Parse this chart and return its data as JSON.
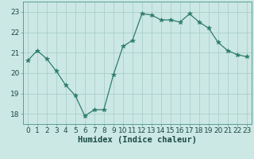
{
  "x": [
    0,
    1,
    2,
    3,
    4,
    5,
    6,
    7,
    8,
    9,
    10,
    11,
    12,
    13,
    14,
    15,
    16,
    17,
    18,
    19,
    20,
    21,
    22,
    23
  ],
  "y": [
    20.6,
    21.1,
    20.7,
    20.1,
    19.4,
    18.9,
    17.9,
    18.2,
    18.2,
    19.9,
    21.3,
    21.6,
    22.9,
    22.85,
    22.6,
    22.6,
    22.5,
    22.9,
    22.5,
    22.2,
    21.5,
    21.1,
    20.9,
    20.8
  ],
  "line_color": "#2e7d6e",
  "marker": "*",
  "marker_size": 4,
  "bg_color": "#cce8e4",
  "grid_color": "#aacfca",
  "xlabel": "Humidex (Indice chaleur)",
  "ylim": [
    17.5,
    23.5
  ],
  "xlim": [
    -0.5,
    23.5
  ],
  "yticks": [
    18,
    19,
    20,
    21,
    22,
    23
  ],
  "xticks": [
    0,
    1,
    2,
    3,
    4,
    5,
    6,
    7,
    8,
    9,
    10,
    11,
    12,
    13,
    14,
    15,
    16,
    17,
    18,
    19,
    20,
    21,
    22,
    23
  ],
  "xlabel_fontsize": 7.5,
  "tick_fontsize": 6.5,
  "spine_color": "#5a9e95",
  "text_color": "#1a4a45"
}
